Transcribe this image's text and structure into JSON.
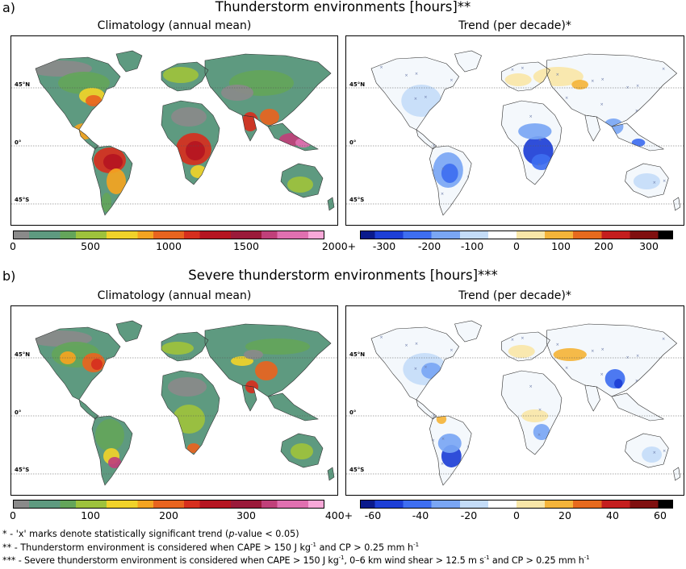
{
  "panel_a": {
    "letter": "a)",
    "title": "Thunderstorm environments [hours]**",
    "left_title": "Climatology (annual mean)",
    "right_title": "Trend (per decade)*",
    "lat_labels": [
      "45°N",
      "0°",
      "45°S"
    ],
    "clim_ticks": [
      "0",
      "500",
      "1000",
      "1500",
      "2000+"
    ],
    "trend_ticks": [
      "-300",
      "-200",
      "-100",
      "0",
      "100",
      "200",
      "300"
    ]
  },
  "panel_b": {
    "letter": "b)",
    "title": "Severe thunderstorm environments [hours]***",
    "left_title": "Climatology (annual mean)",
    "right_title": "Trend (per decade)*",
    "lat_labels": [
      "45°N",
      "0°",
      "45°S"
    ],
    "clim_ticks": [
      "0",
      "100",
      "200",
      "300",
      "400+"
    ],
    "trend_ticks": [
      "-60",
      "-40",
      "-20",
      "0",
      "20",
      "40",
      "60"
    ]
  },
  "footnotes": {
    "line1_a": "* - 'x' marks denote statistically significant trend (",
    "line1_p": "p",
    "line1_b": "-value < 0.05)",
    "line2_a": "** - Thunderstorm environment is considered when CAPE > 150 J kg",
    "line2_sup1": "-1",
    "line2_b": " and CP > 0.25 mm h",
    "line2_sup2": "-1",
    "line3_a": "*** - Severe thunderstorm environment is considered when CAPE > 150 J kg",
    "line3_sup1": "-1",
    "line3_b": ", 0–6 km wind shear > 12.5 m s",
    "line3_sup2": "-1",
    "line3_c": " and CP > 0.25 mm h",
    "line3_sup3": "-1"
  },
  "colors": {
    "clim": [
      "#8a8a8a",
      "#5e9a80",
      "#64a55a",
      "#9ec23c",
      "#f0d22a",
      "#f4a421",
      "#e8641f",
      "#d62f1e",
      "#b51521",
      "#9a1a3a",
      "#c0407a",
      "#e070b0",
      "#f8a8d8"
    ],
    "trend": [
      "#0a1a8c",
      "#1d3fd6",
      "#3e6ef0",
      "#7aa6f4",
      "#c4dcf8",
      "#ffffff",
      "#f8e6a8",
      "#f4b43a",
      "#e66a1e",
      "#c41e1e",
      "#801010",
      "#000000"
    ]
  }
}
